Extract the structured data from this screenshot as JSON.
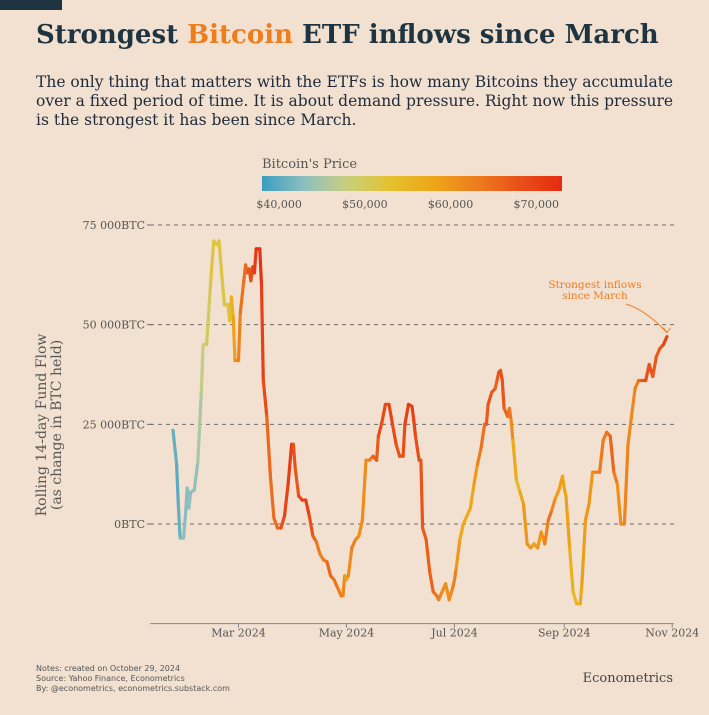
{
  "header": {
    "title_prefix": "Strongest ",
    "title_accent": "Bitcoin",
    "title_suffix": " ETF inflows since March",
    "subtitle": "The only thing that matters with the ETFs is how many Bitcoins they accumulate over a fixed period of time. It is about demand pressure. Right now this pressure is the strongest it has been since March."
  },
  "colors": {
    "accent": "#ee7d1e",
    "title": "#1e3441",
    "background": "#f2e1d1",
    "gradient": [
      "#3a9ec0",
      "#8fbfbf",
      "#c9cf7e",
      "#e4c12d",
      "#eea619",
      "#ee7d1e",
      "#e8501a",
      "#e52a12"
    ]
  },
  "legend": {
    "title": "Bitcoin's Price",
    "ticks": [
      "$40,000",
      "$50,000",
      "$60,000",
      "$70,000"
    ],
    "tick_values": [
      40000,
      50000,
      60000,
      70000
    ],
    "range": [
      38000,
      73000
    ]
  },
  "chart_data": {
    "type": "line",
    "ylabel_line1": "Rolling 14-day Fund Flow",
    "ylabel_line2": "(as change in BTC held)",
    "ylim": [
      -25000,
      75000
    ],
    "yticks": [
      0,
      25000,
      50000,
      75000
    ],
    "ytick_labels": [
      "0BTC",
      "25 000BTC",
      "50 000BTC",
      "75 000BTC"
    ],
    "xlim": [
      "2024-01-11",
      "2024-11-02"
    ],
    "xticks": [
      "2024-03-01",
      "2024-05-01",
      "2024-07-01",
      "2024-09-01",
      "2024-11-01"
    ],
    "xtick_labels": [
      "Mar 2024",
      "May 2024",
      "Jul 2024",
      "Sep 2024",
      "Nov 2024"
    ],
    "grid": "horizontal dashed",
    "annotation": {
      "text_line1": "Strongest inflows",
      "text_line2": "since March",
      "date": "2024-10-29",
      "value": 47000
    },
    "series": [
      {
        "points": [
          [
            "2024-01-24",
            23500,
            41000
          ],
          [
            "2024-01-26",
            15000,
            40200
          ],
          [
            "2024-01-27",
            5000,
            39800
          ],
          [
            "2024-01-28",
            -3500,
            41500
          ],
          [
            "2024-01-30",
            -3500,
            43000
          ],
          [
            "2024-01-31",
            2000,
            42800
          ],
          [
            "2024-02-01",
            9000,
            42500
          ],
          [
            "2024-02-02",
            4000,
            43000
          ],
          [
            "2024-02-03",
            8000,
            43100
          ],
          [
            "2024-02-05",
            8500,
            42700
          ],
          [
            "2024-02-07",
            15500,
            44200
          ],
          [
            "2024-02-09",
            33000,
            47000
          ],
          [
            "2024-02-10",
            45000,
            48000
          ],
          [
            "2024-02-12",
            45000,
            48500
          ],
          [
            "2024-02-14",
            59000,
            51700
          ],
          [
            "2024-02-16",
            71000,
            52000
          ],
          [
            "2024-02-18",
            70000,
            51800
          ],
          [
            "2024-02-19",
            71000,
            52000
          ],
          [
            "2024-02-21",
            60000,
            51500
          ],
          [
            "2024-02-22",
            55000,
            51300
          ],
          [
            "2024-02-24",
            55000,
            51700
          ],
          [
            "2024-02-25",
            51000,
            51800
          ],
          [
            "2024-02-26",
            57000,
            54500
          ],
          [
            "2024-02-27",
            52000,
            57000
          ],
          [
            "2024-02-28",
            41000,
            60000
          ],
          [
            "2024-03-01",
            41000,
            62000
          ],
          [
            "2024-03-02",
            53000,
            62500
          ],
          [
            "2024-03-04",
            61000,
            66000
          ],
          [
            "2024-03-05",
            65000,
            64000
          ],
          [
            "2024-03-06",
            63000,
            66500
          ],
          [
            "2024-03-07",
            64000,
            67000
          ],
          [
            "2024-03-08",
            61000,
            68500
          ],
          [
            "2024-03-09",
            64500,
            68500
          ],
          [
            "2024-03-10",
            63000,
            69500
          ],
          [
            "2024-03-11",
            69000,
            72000
          ],
          [
            "2024-03-13",
            69000,
            73000
          ],
          [
            "2024-03-14",
            60000,
            71000
          ],
          [
            "2024-03-15",
            36000,
            69500
          ],
          [
            "2024-03-17",
            27000,
            68000
          ],
          [
            "2024-03-19",
            12000,
            63000
          ],
          [
            "2024-03-21",
            1500,
            66500
          ],
          [
            "2024-03-23",
            -1000,
            64500
          ],
          [
            "2024-03-25",
            -1000,
            67000
          ],
          [
            "2024-03-27",
            2000,
            69500
          ],
          [
            "2024-03-29",
            10000,
            70000
          ],
          [
            "2024-03-31",
            20000,
            71000
          ],
          [
            "2024-04-01",
            20000,
            69500
          ],
          [
            "2024-04-02",
            14000,
            66000
          ],
          [
            "2024-04-04",
            7000,
            68500
          ],
          [
            "2024-04-06",
            6000,
            69000
          ],
          [
            "2024-04-08",
            6000,
            71500
          ],
          [
            "2024-04-10",
            2000,
            69000
          ],
          [
            "2024-04-12",
            -3000,
            67000
          ],
          [
            "2024-04-14",
            -4500,
            64000
          ],
          [
            "2024-04-16",
            -7500,
            63000
          ],
          [
            "2024-04-18",
            -9000,
            61500
          ],
          [
            "2024-04-20",
            -9500,
            64500
          ],
          [
            "2024-04-22",
            -13000,
            66500
          ],
          [
            "2024-04-24",
            -14000,
            64000
          ],
          [
            "2024-04-26",
            -16000,
            63500
          ],
          [
            "2024-04-28",
            -18000,
            62900
          ],
          [
            "2024-04-29",
            -18000,
            63000
          ],
          [
            "2024-04-30",
            -13000,
            60500
          ],
          [
            "2024-05-01",
            -14000,
            58000
          ],
          [
            "2024-05-02",
            -13000,
            59000
          ],
          [
            "2024-05-04",
            -6000,
            63500
          ],
          [
            "2024-05-06",
            -4000,
            63000
          ],
          [
            "2024-05-08",
            -3000,
            61000
          ],
          [
            "2024-05-10",
            1000,
            60500
          ],
          [
            "2024-05-12",
            16000,
            61500
          ],
          [
            "2024-05-14",
            16000,
            61500
          ],
          [
            "2024-05-16",
            17000,
            65000
          ],
          [
            "2024-05-18",
            16000,
            67000
          ],
          [
            "2024-05-19",
            22000,
            66500
          ],
          [
            "2024-05-21",
            25500,
            70000
          ],
          [
            "2024-05-23",
            30000,
            67800
          ],
          [
            "2024-05-25",
            30000,
            69000
          ],
          [
            "2024-05-27",
            25000,
            69500
          ],
          [
            "2024-05-29",
            20000,
            67500
          ],
          [
            "2024-05-31",
            17000,
            67500
          ],
          [
            "2024-06-02",
            17000,
            67700
          ],
          [
            "2024-06-03",
            25000,
            68800
          ],
          [
            "2024-06-05",
            30000,
            71000
          ],
          [
            "2024-06-07",
            29500,
            71100
          ],
          [
            "2024-06-08",
            26000,
            69300
          ],
          [
            "2024-06-09",
            22000,
            69600
          ],
          [
            "2024-06-11",
            16000,
            67000
          ],
          [
            "2024-06-12",
            16000,
            68200
          ],
          [
            "2024-06-13",
            -1000,
            66800
          ],
          [
            "2024-06-15",
            -4000,
            66200
          ],
          [
            "2024-06-17",
            -12000,
            66500
          ],
          [
            "2024-06-19",
            -17000,
            65000
          ],
          [
            "2024-06-21",
            -18000,
            64000
          ],
          [
            "2024-06-22",
            -19000,
            64300
          ],
          [
            "2024-06-24",
            -17000,
            60300
          ],
          [
            "2024-06-26",
            -15000,
            61500
          ],
          [
            "2024-06-28",
            -19000,
            60300
          ],
          [
            "2024-06-30",
            -16000,
            62600
          ],
          [
            "2024-07-01",
            -14000,
            62900
          ],
          [
            "2024-07-02",
            -11000,
            62100
          ],
          [
            "2024-07-04",
            -4000,
            57000
          ],
          [
            "2024-07-06",
            0,
            58200
          ],
          [
            "2024-07-08",
            2000,
            56700
          ],
          [
            "2024-07-10",
            4000,
            57700
          ],
          [
            "2024-07-12",
            10000,
            57900
          ],
          [
            "2024-07-14",
            15000,
            60800
          ],
          [
            "2024-07-16",
            19000,
            64800
          ],
          [
            "2024-07-18",
            25000,
            64000
          ],
          [
            "2024-07-19",
            25000,
            66700
          ],
          [
            "2024-07-20",
            30000,
            67000
          ],
          [
            "2024-07-22",
            33000,
            68200
          ],
          [
            "2024-07-24",
            34000,
            65900
          ],
          [
            "2024-07-25",
            36000,
            65800
          ],
          [
            "2024-07-26",
            38000,
            67900
          ],
          [
            "2024-07-27",
            38500,
            68000
          ],
          [
            "2024-07-28",
            36000,
            68200
          ],
          [
            "2024-07-29",
            29000,
            66800
          ],
          [
            "2024-07-31",
            27000,
            64600
          ],
          [
            "2024-08-01",
            29000,
            65300
          ],
          [
            "2024-08-02",
            26000,
            61500
          ],
          [
            "2024-08-03",
            21000,
            60700
          ],
          [
            "2024-08-05",
            11000,
            54000
          ],
          [
            "2024-08-07",
            8000,
            55100
          ],
          [
            "2024-08-09",
            5000,
            60800
          ],
          [
            "2024-08-11",
            -5000,
            58700
          ],
          [
            "2024-08-13",
            -6000,
            60600
          ],
          [
            "2024-08-15",
            -5000,
            57600
          ],
          [
            "2024-08-17",
            -6000,
            59400
          ],
          [
            "2024-08-19",
            -2000,
            59500
          ],
          [
            "2024-08-21",
            -5000,
            61200
          ],
          [
            "2024-08-23",
            1000,
            64100
          ],
          [
            "2024-08-25",
            3500,
            64200
          ],
          [
            "2024-08-27",
            6500,
            59400
          ],
          [
            "2024-08-29",
            8500,
            59000
          ],
          [
            "2024-08-31",
            12000,
            58800
          ],
          [
            "2024-09-01",
            9000,
            57300
          ],
          [
            "2024-09-02",
            7000,
            59100
          ],
          [
            "2024-09-04",
            -6000,
            58000
          ],
          [
            "2024-09-06",
            -17000,
            53900
          ],
          [
            "2024-09-08",
            -20000,
            54800
          ],
          [
            "2024-09-10",
            -20000,
            57600
          ],
          [
            "2024-09-11",
            -15000,
            57300
          ],
          [
            "2024-09-13",
            1000,
            60500
          ],
          [
            "2024-09-15",
            5000,
            59100
          ],
          [
            "2024-09-17",
            13000,
            60300
          ],
          [
            "2024-09-19",
            13000,
            62900
          ],
          [
            "2024-09-21",
            13000,
            63300
          ],
          [
            "2024-09-23",
            21000,
            63300
          ],
          [
            "2024-09-25",
            23000,
            63100
          ],
          [
            "2024-09-27",
            22000,
            65800
          ],
          [
            "2024-09-29",
            13000,
            65600
          ],
          [
            "2024-10-01",
            10000,
            60800
          ],
          [
            "2024-10-03",
            0,
            60600
          ],
          [
            "2024-10-05",
            0,
            62100
          ],
          [
            "2024-10-07",
            20000,
            62200
          ],
          [
            "2024-10-09",
            27000,
            60600
          ],
          [
            "2024-10-11",
            34000,
            62400
          ],
          [
            "2024-10-13",
            36000,
            62800
          ],
          [
            "2024-10-15",
            36000,
            67000
          ],
          [
            "2024-10-17",
            36000,
            67500
          ],
          [
            "2024-10-19",
            40000,
            68400
          ],
          [
            "2024-10-21",
            37000,
            67400
          ],
          [
            "2024-10-23",
            42000,
            66700
          ],
          [
            "2024-10-25",
            44000,
            66700
          ],
          [
            "2024-10-27",
            45000,
            67900
          ],
          [
            "2024-10-29",
            47000,
            71500
          ]
        ]
      }
    ]
  },
  "footer": {
    "notes": "Notes: created on October 29, 2024",
    "source": "Source: Yahoo Finance, Econometrics",
    "by": "By: @econometrics, econometrics.substack.com",
    "brand": "Econometrics"
  }
}
